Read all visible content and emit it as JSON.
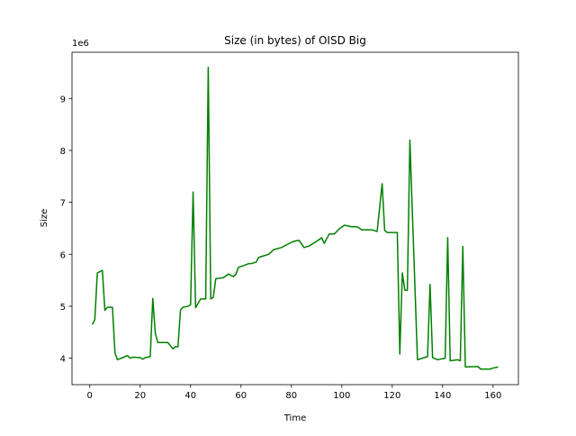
{
  "chart_data": {
    "type": "line",
    "title": "Size (in bytes) of OISD Big",
    "x_label": "Time",
    "y_label": "Size",
    "y_offset_label": "1e6",
    "series": [
      {
        "name": "Size",
        "color": "#008000",
        "x": [
          1,
          2,
          3,
          5,
          6,
          7,
          9,
          10,
          11,
          14,
          15,
          16,
          17,
          20,
          21,
          22,
          24,
          25,
          26,
          27,
          31,
          33,
          34,
          35,
          36,
          37,
          39,
          40,
          41,
          42,
          43,
          44,
          46,
          47,
          48,
          49,
          50,
          53,
          55,
          57,
          58,
          59,
          61,
          63,
          64,
          66,
          67,
          69,
          71,
          73,
          76,
          80,
          81,
          83,
          85,
          87,
          90,
          92,
          93,
          95,
          97,
          99,
          101,
          104,
          106,
          108,
          112,
          114,
          116,
          117,
          118,
          122,
          123,
          124,
          125,
          126,
          127,
          130,
          132,
          134,
          135,
          136,
          138,
          141,
          142,
          143,
          146,
          147,
          148,
          149,
          154,
          155,
          159,
          160,
          162
        ],
        "values": [
          4.65,
          4.74,
          5.64,
          5.69,
          4.92,
          4.98,
          4.98,
          4.1,
          3.97,
          4.03,
          4.05,
          4.0,
          4.02,
          4.01,
          3.98,
          4.01,
          4.03,
          5.15,
          4.48,
          4.3,
          4.3,
          4.18,
          4.22,
          4.22,
          4.93,
          4.98,
          5.0,
          5.03,
          7.2,
          4.97,
          5.06,
          5.14,
          5.14,
          9.6,
          5.14,
          5.17,
          5.53,
          5.55,
          5.62,
          5.57,
          5.62,
          5.75,
          5.78,
          5.82,
          5.82,
          5.85,
          5.94,
          5.97,
          6.0,
          6.09,
          6.13,
          6.23,
          6.25,
          6.27,
          6.13,
          6.16,
          6.25,
          6.32,
          6.21,
          6.39,
          6.39,
          6.49,
          6.56,
          6.53,
          6.53,
          6.47,
          6.47,
          6.44,
          7.36,
          6.46,
          6.42,
          6.42,
          4.08,
          5.64,
          5.31,
          5.31,
          8.2,
          3.97,
          4.0,
          4.03,
          5.42,
          4.01,
          3.97,
          4.0,
          6.32,
          3.95,
          3.97,
          3.95,
          6.15,
          3.83,
          3.84,
          3.79,
          3.79,
          3.81,
          3.83
        ]
      }
    ],
    "xlim": [
      -7.05,
      170.05
    ],
    "xticks": [
      0,
      20,
      40,
      60,
      80,
      100,
      120,
      140,
      160
    ],
    "ylim": [
      3.49,
      9.89
    ],
    "yticks": [
      4,
      5,
      6,
      7,
      8,
      9
    ]
  }
}
